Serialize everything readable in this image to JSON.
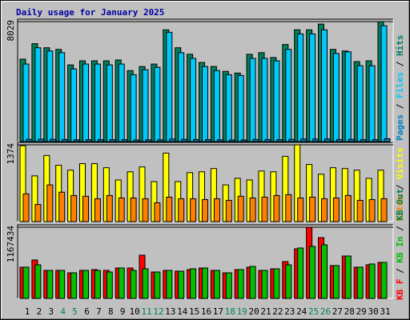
{
  "title": "Daily usage for January 2025",
  "legend_separator": " / ",
  "chart_data": [
    {
      "type": "bar",
      "ylim": [
        0,
        8029
      ],
      "yticks": [
        8029
      ],
      "series": [
        {
          "name": "Hits",
          "color": "#008060",
          "values": [
            5515,
            6552,
            6279,
            6170,
            5132,
            5405,
            5405,
            5405,
            5460,
            4750,
            5023,
            5187,
            7480,
            6279,
            5842,
            5296,
            5023,
            4696,
            4586,
            5842,
            5951,
            5624,
            6497,
            7480,
            7480,
            7862,
            6170,
            6061,
            5351,
            5405,
            8029
          ]
        },
        {
          "name": "Files",
          "color": "#00c8f8",
          "values": [
            5187,
            6279,
            6061,
            5951,
            4859,
            5187,
            5187,
            5132,
            5187,
            4477,
            4805,
            4969,
            7316,
            5951,
            5569,
            5023,
            4750,
            4477,
            4423,
            5569,
            5569,
            5405,
            6170,
            7207,
            7207,
            7480,
            5897,
            6006,
            5078,
            5078,
            7753
          ]
        },
        {
          "name": "Pages",
          "color": "#0080c0",
          "values": [
            150,
            160,
            150,
            140,
            120,
            130,
            130,
            130,
            130,
            110,
            120,
            120,
            170,
            150,
            140,
            130,
            120,
            110,
            110,
            140,
            140,
            130,
            150,
            170,
            170,
            180,
            140,
            150,
            130,
            130,
            190
          ]
        }
      ]
    },
    {
      "type": "bar",
      "ylim": [
        0,
        1374
      ],
      "yticks": [
        1374
      ],
      "series": [
        {
          "name": "Visits",
          "color": "#ffff00",
          "values": [
            1358,
            818,
            1183,
            1007,
            920,
            1037,
            1037,
            964,
            745,
            891,
            978,
            715,
            1226,
            715,
            876,
            891,
            949,
            657,
            774,
            745,
            905,
            891,
            1168,
            1374,
            1022,
            847,
            964,
            949,
            920,
            774,
            920
          ]
        },
        {
          "name": "Sites",
          "color": "#ff8000",
          "values": [
            496,
            307,
            657,
            526,
            467,
            453,
            409,
            467,
            423,
            423,
            409,
            336,
            438,
            409,
            409,
            394,
            409,
            380,
            453,
            423,
            438,
            467,
            482,
            423,
            438,
            409,
            423,
            467,
            380,
            394,
            409
          ]
        }
      ]
    },
    {
      "type": "bar",
      "ylim": [
        0,
        1167434
      ],
      "yticks": [
        1167434
      ],
      "categories": [
        "1",
        "2",
        "3",
        "4",
        "5",
        "6",
        "7",
        "8",
        "9",
        "10",
        "11",
        "12",
        "13",
        "14",
        "15",
        "16",
        "17",
        "18",
        "19",
        "20",
        "21",
        "22",
        "23",
        "24",
        "25",
        "26",
        "27",
        "28",
        "29",
        "30",
        "31"
      ],
      "weekend_categories": [
        "4",
        "5",
        "11",
        "12",
        "18",
        "19",
        "25",
        "26"
      ],
      "weekend_color": "#008060",
      "series": [
        {
          "name": "KB F",
          "color": "#ff0000",
          "values": [
            511563,
            629616,
            459095,
            459095,
            419744,
            459095,
            472212,
            459095,
            498446,
            498446,
            708318,
            432861,
            459095,
            445978,
            472212,
            498446,
            459095,
            419744,
            472212,
            511563,
            459095,
            485329,
            603382,
            813254,
            1167434,
            996892,
            537797,
            695201,
            511563,
            550914,
            590265
          ]
        },
        {
          "name": "KB In",
          "color": "#00c000",
          "values": [
            511563,
            550914,
            459095,
            459095,
            419744,
            459095,
            459095,
            432861,
            498446,
            459095,
            485329,
            432861,
            459095,
            445978,
            485329,
            498446,
            459095,
            419744,
            472212,
            524680,
            459095,
            485329,
            550914,
            826371,
            852605,
            878839,
            537797,
            695201,
            511563,
            564031,
            590265
          ]
        },
        {
          "name": "KB Out",
          "color": "#008040",
          "values": [
            0,
            0,
            0,
            0,
            0,
            0,
            0,
            0,
            0,
            0,
            0,
            0,
            0,
            0,
            0,
            0,
            0,
            0,
            0,
            0,
            0,
            0,
            0,
            0,
            0,
            0,
            0,
            0,
            0,
            0,
            0
          ]
        }
      ]
    }
  ]
}
